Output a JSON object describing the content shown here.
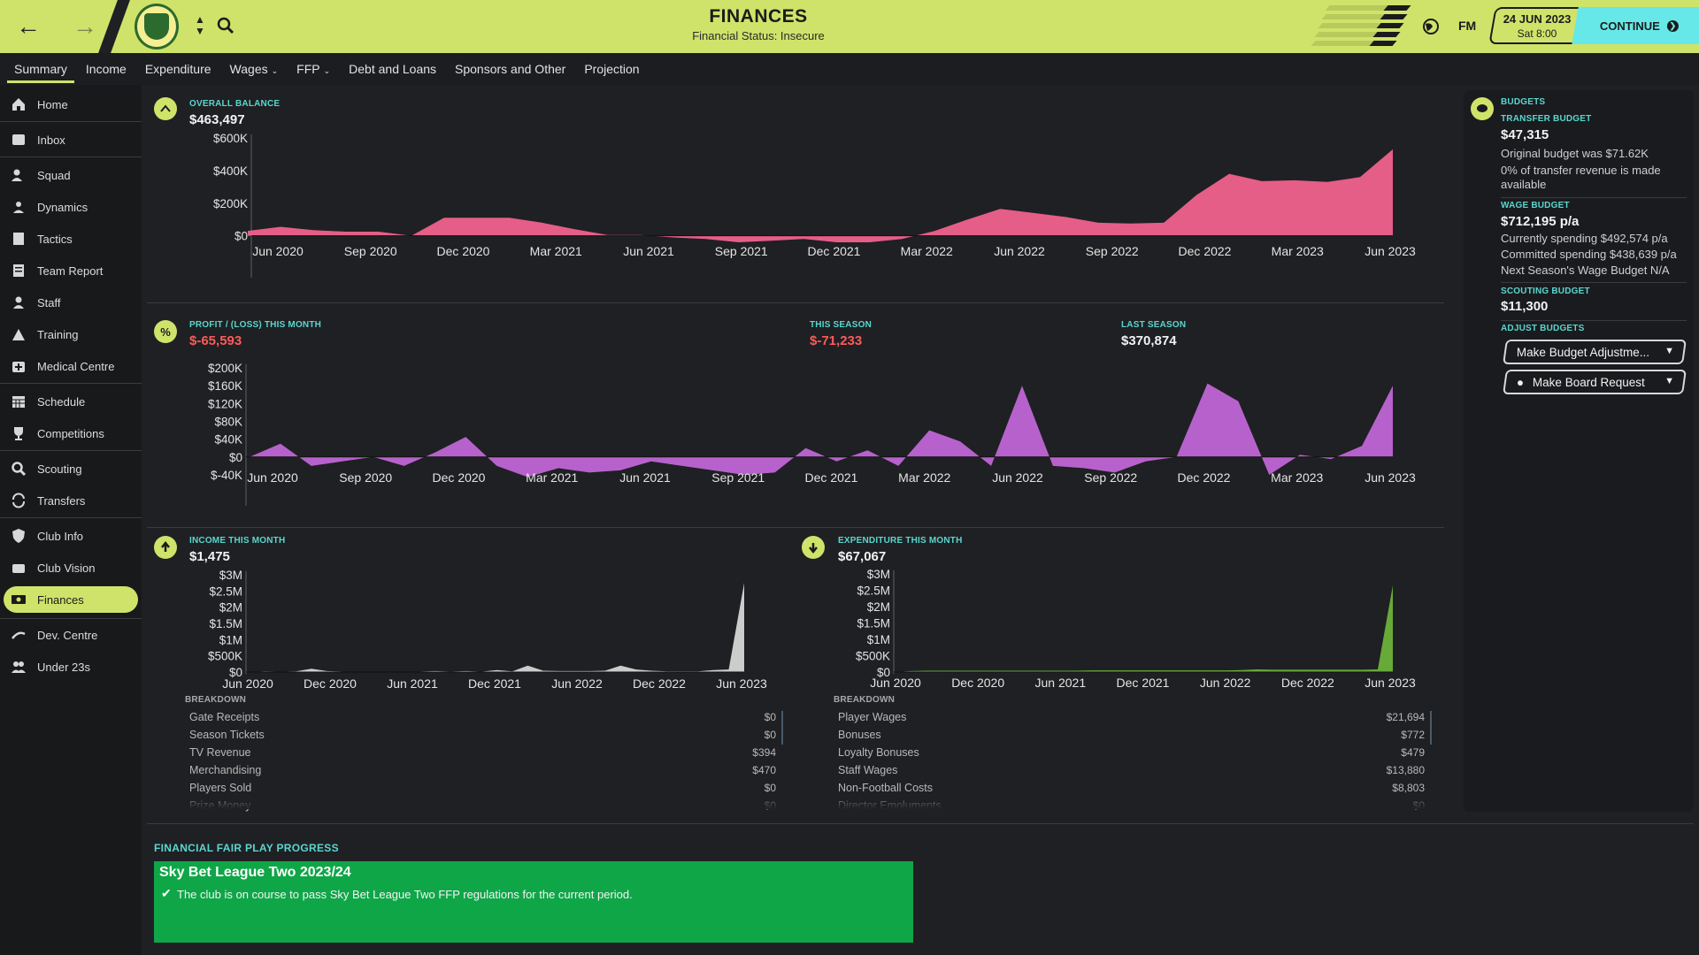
{
  "header": {
    "title": "FINANCES",
    "subtitle": "Financial Status: Insecure",
    "fm_label": "FM",
    "date": "24 JUN 2023",
    "time": "Sat 8:00",
    "continue_label": "CONTINUE"
  },
  "tabs": [
    {
      "label": "Summary",
      "active": true
    },
    {
      "label": "Income"
    },
    {
      "label": "Expenditure"
    },
    {
      "label": "Wages",
      "dropdown": true
    },
    {
      "label": "FFP",
      "dropdown": true
    },
    {
      "label": "Debt and Loans"
    },
    {
      "label": "Sponsors and Other"
    },
    {
      "label": "Projection"
    }
  ],
  "sidebar": {
    "items": [
      {
        "label": "Home",
        "icon": "home-icon"
      },
      {
        "label": "Inbox",
        "icon": "inbox-icon"
      },
      {
        "label": "Squad",
        "icon": "squad-icon"
      },
      {
        "label": "Dynamics",
        "icon": "dynamics-icon"
      },
      {
        "label": "Tactics",
        "icon": "tactics-icon"
      },
      {
        "label": "Team Report",
        "icon": "report-icon"
      },
      {
        "label": "Staff",
        "icon": "staff-icon"
      },
      {
        "label": "Training",
        "icon": "training-icon"
      },
      {
        "label": "Medical Centre",
        "icon": "medical-icon"
      },
      {
        "label": "Schedule",
        "icon": "calendar-icon"
      },
      {
        "label": "Competitions",
        "icon": "trophy-icon"
      },
      {
        "label": "Scouting",
        "icon": "scouting-icon"
      },
      {
        "label": "Transfers",
        "icon": "transfers-icon"
      },
      {
        "label": "Club Info",
        "icon": "shield-icon"
      },
      {
        "label": "Club Vision",
        "icon": "vision-icon"
      },
      {
        "label": "Finances",
        "icon": "finances-icon",
        "active": true
      },
      {
        "label": "Dev. Centre",
        "icon": "dev-centre-icon"
      },
      {
        "label": "Under 23s",
        "icon": "under23-icon"
      }
    ]
  },
  "balance": {
    "label": "OVERALL BALANCE",
    "value": "$463,497"
  },
  "profit": {
    "label": "PROFIT / (LOSS) THIS MONTH",
    "value": "$-65,593",
    "season_label": "THIS SEASON",
    "season_value": "$-71,233",
    "last_label": "LAST SEASON",
    "last_value": "$370,874"
  },
  "income": {
    "label": "INCOME THIS MONTH",
    "value": "$1,475",
    "breakdown_label": "BREAKDOWN",
    "rows": [
      {
        "name": "Gate Receipts",
        "value": "$0"
      },
      {
        "name": "Season Tickets",
        "value": "$0"
      },
      {
        "name": "TV Revenue",
        "value": "$394"
      },
      {
        "name": "Merchandising",
        "value": "$470"
      },
      {
        "name": "Players Sold",
        "value": "$0"
      },
      {
        "name": "Prize Money",
        "value": "$0"
      }
    ]
  },
  "expenditure": {
    "label": "EXPENDITURE THIS MONTH",
    "value": "$67,067",
    "breakdown_label": "BREAKDOWN",
    "rows": [
      {
        "name": "Player Wages",
        "value": "$21,694"
      },
      {
        "name": "Bonuses",
        "value": "$772"
      },
      {
        "name": "Loyalty Bonuses",
        "value": "$479"
      },
      {
        "name": "Staff Wages",
        "value": "$13,880"
      },
      {
        "name": "Non-Football Costs",
        "value": "$8,803"
      },
      {
        "name": "Director Emoluments",
        "value": "$0"
      }
    ]
  },
  "budgets": {
    "title": "BUDGETS",
    "transfer_label": "TRANSFER BUDGET",
    "transfer_value": "$47,315",
    "transfer_note1": "Original budget was $71.62K",
    "transfer_note2": "0% of transfer revenue is made",
    "transfer_note3": "available",
    "wage_label": "WAGE BUDGET",
    "wage_value": "$712,195 p/a",
    "wage_note1": "Currently spending $492,574 p/a",
    "wage_note2": "Committed spending $438,639 p/a",
    "wage_note3": "Next Season's Wage Budget N/A",
    "scouting_label": "SCOUTING BUDGET",
    "scouting_value": "$11,300",
    "adjust_label": "ADJUST BUDGETS",
    "adjust_button": "Make Budget Adjustme...",
    "board_button": "Make Board Request"
  },
  "ffp": {
    "title": "FINANCIAL FAIR PLAY PROGRESS",
    "league": "Sky Bet League Two 2023/24",
    "status": "The club is on course to pass Sky Bet League Two FFP regulations for the current period."
  },
  "colors": {
    "accent": "#cfe36a",
    "teal": "#5ad6cf",
    "balance": "#f0628e",
    "profit": "#c066d6",
    "income": "#d6d6d6",
    "expenditure": "#6bb23a",
    "ffp": "#0fa648"
  },
  "chart_data": [
    {
      "type": "area",
      "name": "balance",
      "ylim": [
        -40000,
        600000
      ],
      "y_ticks": [
        "$600K",
        "$400K",
        "$200K",
        "$0"
      ],
      "y_tick_values": [
        600000,
        400000,
        200000,
        0
      ],
      "x_ticks": [
        "Jun 2020",
        "Sep 2020",
        "Dec 2020",
        "Mar 2021",
        "Jun 2021",
        "Sep 2021",
        "Dec 2021",
        "Mar 2022",
        "Jun 2022",
        "Sep 2022",
        "Dec 2022",
        "Mar 2023",
        "Jun 2023"
      ],
      "values": [
        30000,
        55000,
        35000,
        25000,
        25000,
        0,
        110000,
        110000,
        110000,
        80000,
        40000,
        5000,
        5000,
        -10000,
        -20000,
        -40000,
        -30000,
        -20000,
        -40000,
        -40000,
        -20000,
        30000,
        100000,
        165000,
        140000,
        115000,
        80000,
        75000,
        80000,
        250000,
        380000,
        335000,
        340000,
        330000,
        360000,
        530000
      ]
    },
    {
      "type": "area",
      "name": "profit",
      "ylim": [
        -50000,
        200000
      ],
      "y_ticks": [
        "$200K",
        "$160K",
        "$120K",
        "$80K",
        "$40K",
        "$0",
        "$-40K"
      ],
      "y_tick_values": [
        200000,
        160000,
        120000,
        80000,
        40000,
        0,
        -40000
      ],
      "x_ticks": [
        "Jun 2020",
        "Sep 2020",
        "Dec 2020",
        "Mar 2021",
        "Jun 2021",
        "Sep 2021",
        "Dec 2021",
        "Mar 2022",
        "Jun 2022",
        "Sep 2022",
        "Dec 2022",
        "Mar 2023",
        "Jun 2023"
      ],
      "values": [
        0,
        30000,
        -20000,
        -10000,
        0,
        -20000,
        10000,
        45000,
        -20000,
        -45000,
        -25000,
        -35000,
        -30000,
        -10000,
        -20000,
        -30000,
        -40000,
        -35000,
        20000,
        -10000,
        15000,
        -20000,
        60000,
        35000,
        -20000,
        160000,
        -20000,
        -25000,
        -35000,
        -10000,
        0,
        165000,
        125000,
        -40000,
        5000,
        -5000,
        25000,
        160000
      ]
    },
    {
      "type": "area",
      "name": "income",
      "ylim": [
        0,
        3000000
      ],
      "y_ticks": [
        "$3M",
        "$2.5M",
        "$2M",
        "$1.5M",
        "$1M",
        "$500K",
        "$0"
      ],
      "y_tick_values": [
        3000000,
        2500000,
        2000000,
        1500000,
        1000000,
        500000,
        0
      ],
      "x_ticks": [
        "Jun 2020",
        "Dec 2020",
        "Jun 2021",
        "Dec 2021",
        "Jun 2022",
        "Dec 2022",
        "Jun 2023"
      ],
      "values": [
        0,
        20000,
        10000,
        20000,
        100000,
        30000,
        15000,
        10000,
        10000,
        10000,
        10000,
        15000,
        30000,
        15000,
        30000,
        10000,
        60000,
        20000,
        200000,
        40000,
        30000,
        30000,
        30000,
        40000,
        200000,
        80000,
        40000,
        20000,
        20000,
        20000,
        60000,
        80000,
        2750000
      ]
    },
    {
      "type": "area",
      "name": "expenditure",
      "ylim": [
        0,
        3000000
      ],
      "y_ticks": [
        "$3M",
        "$2.5M",
        "$2M",
        "$1.5M",
        "$1M",
        "$500K",
        "$0"
      ],
      "y_tick_values": [
        3000000,
        2500000,
        2000000,
        1500000,
        1000000,
        500000,
        0
      ],
      "x_ticks": [
        "Jun 2020",
        "Dec 2020",
        "Jun 2021",
        "Dec 2021",
        "Jun 2022",
        "Dec 2022",
        "Jun 2023"
      ],
      "values": [
        0,
        30000,
        40000,
        40000,
        40000,
        40000,
        40000,
        40000,
        40000,
        40000,
        40000,
        40000,
        40000,
        50000,
        50000,
        50000,
        50000,
        50000,
        50000,
        50000,
        50000,
        50000,
        50000,
        60000,
        80000,
        70000,
        70000,
        70000,
        70000,
        70000,
        70000,
        70000,
        80000,
        2650000
      ]
    }
  ]
}
